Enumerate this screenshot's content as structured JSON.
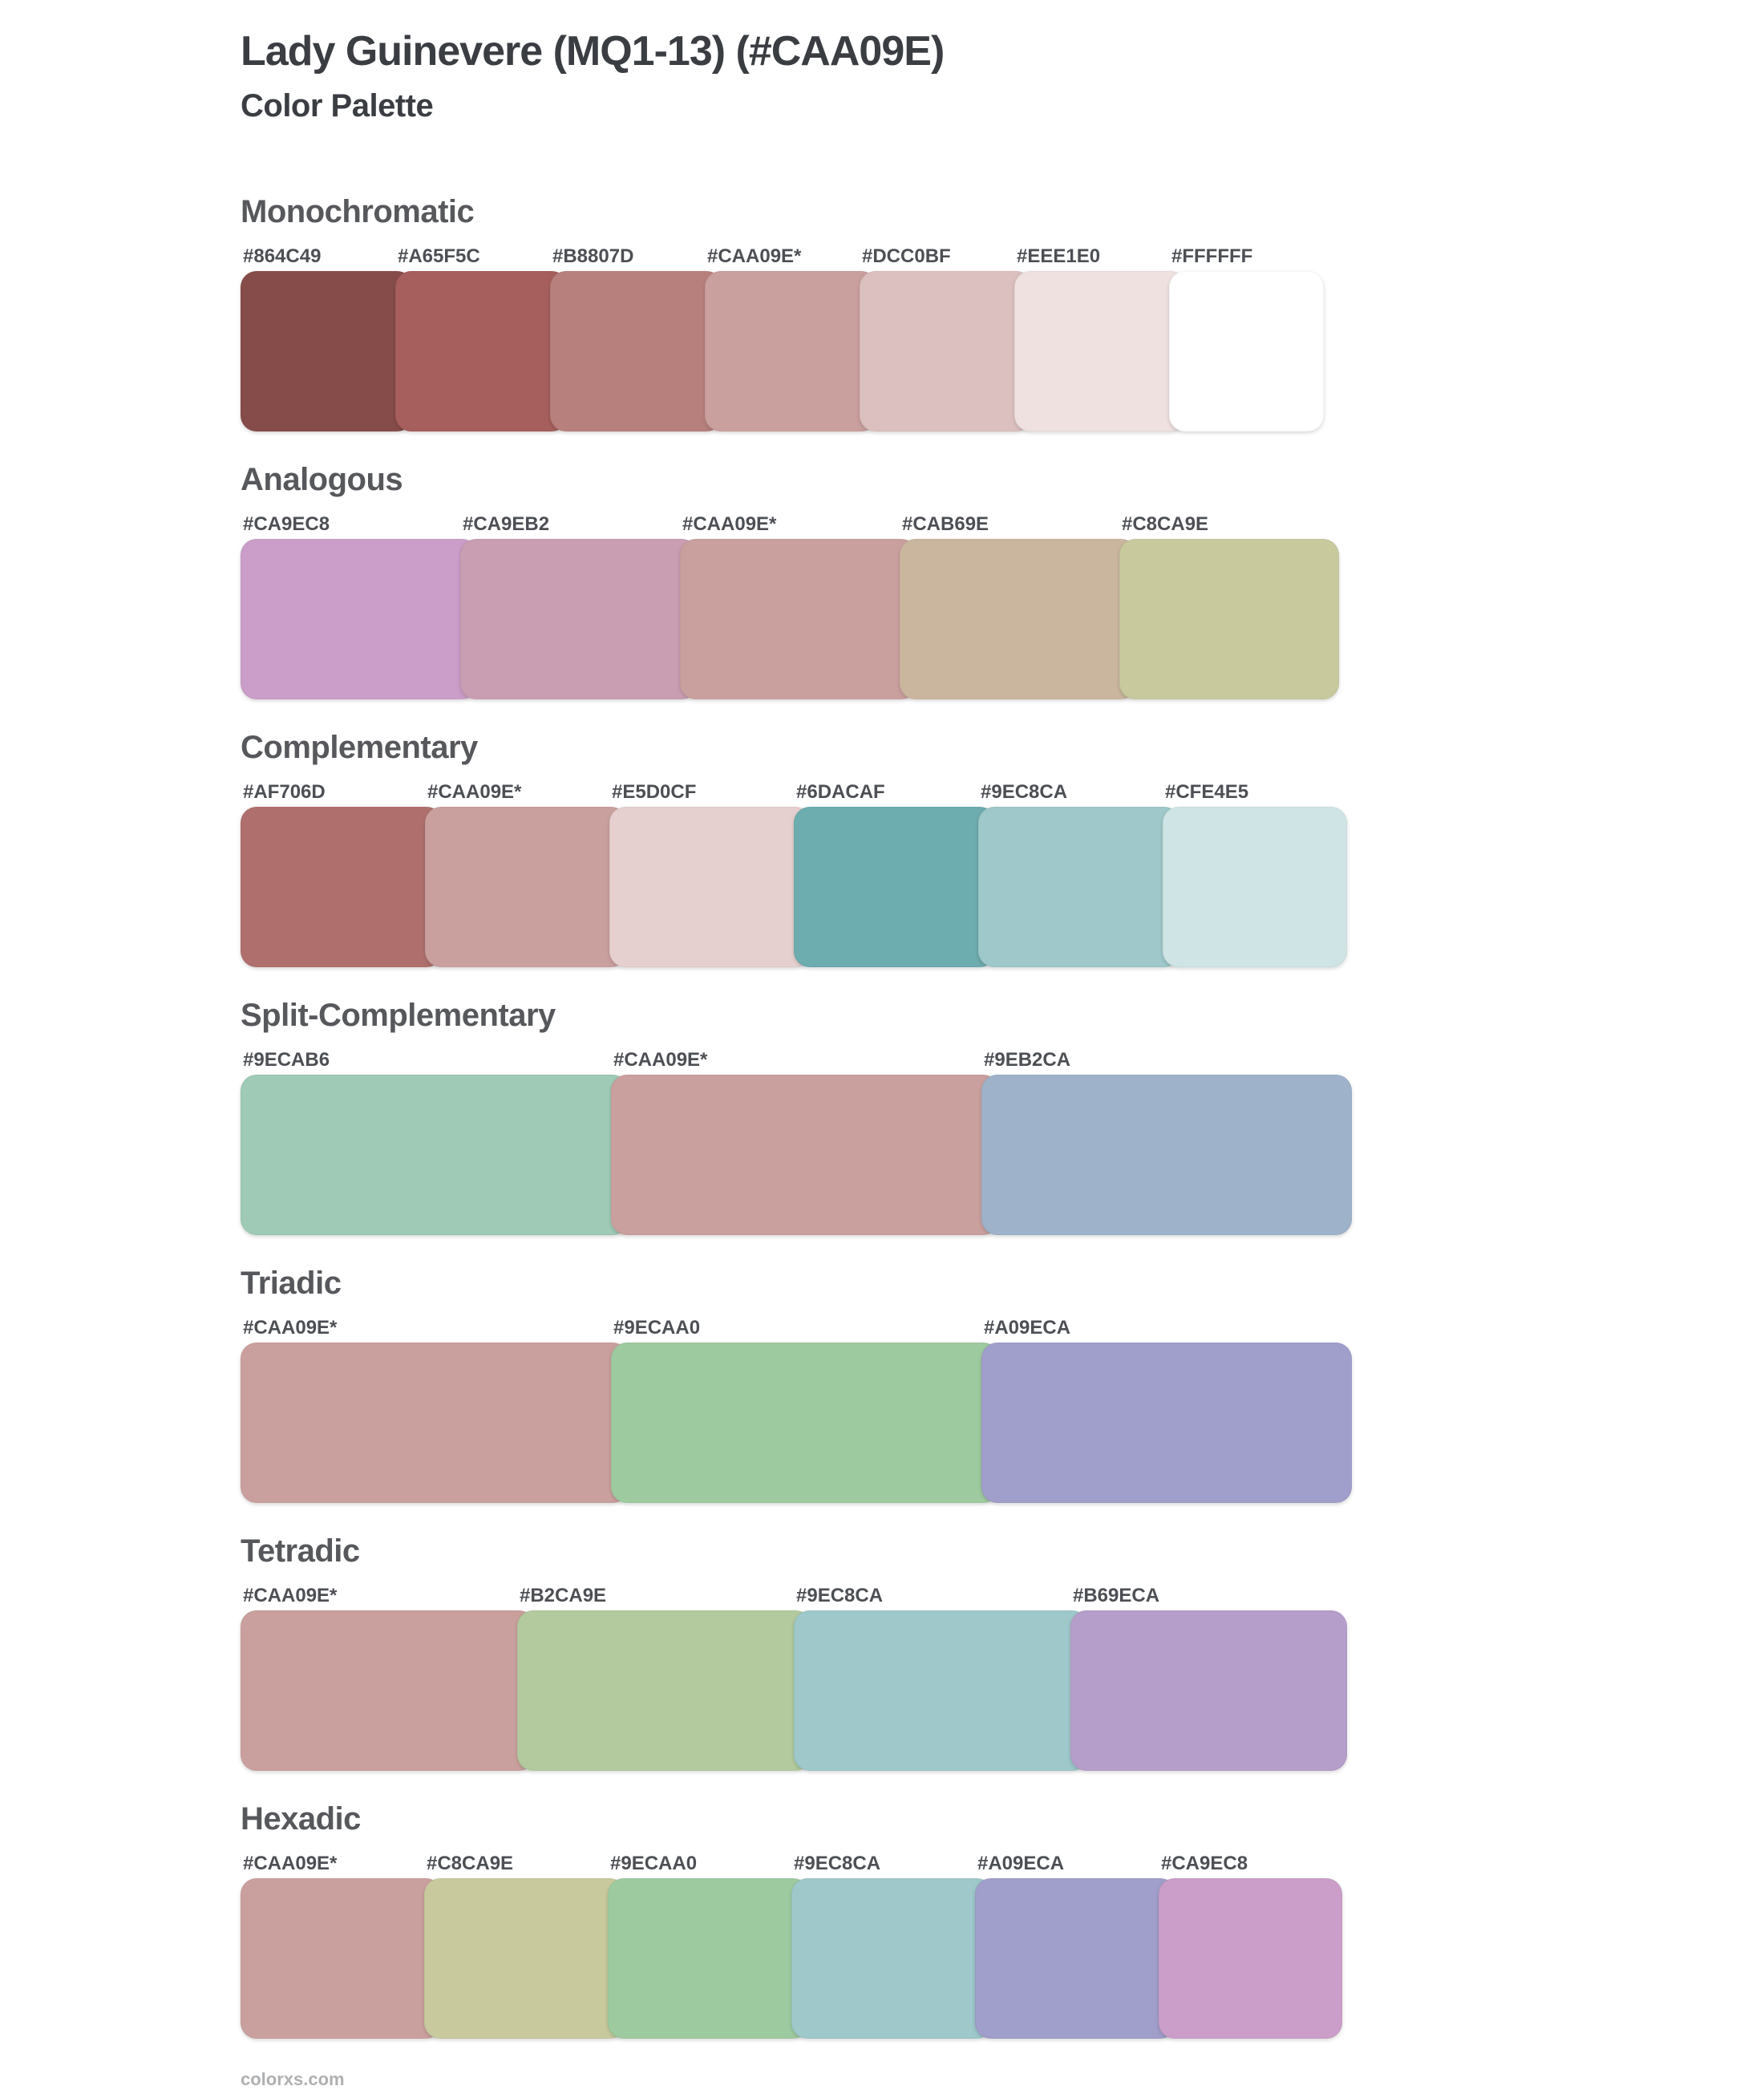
{
  "page": {
    "title": "Lady Guinevere (MQ1-13) (#CAA09E)",
    "subtitle": "Color Palette",
    "base_color": "#CAA09E",
    "footer": "colorxs.com"
  },
  "sections": [
    {
      "id": "monochromatic",
      "label": "Monochromatic",
      "swatches": [
        {
          "hex": "#864C49",
          "color": "#864C49"
        },
        {
          "hex": "#A65F5C",
          "color": "#A65F5C"
        },
        {
          "hex": "#B8807D",
          "color": "#B8807D"
        },
        {
          "hex": "#CAA09E*",
          "color": "#CAA09E"
        },
        {
          "hex": "#DCC0BF",
          "color": "#DCC0BF"
        },
        {
          "hex": "#EEE1E0",
          "color": "#EEE1E0"
        },
        {
          "hex": "#FFFFFF",
          "color": "#FFFFFF"
        }
      ]
    },
    {
      "id": "analogous",
      "label": "Analogous",
      "swatches": [
        {
          "hex": "#CA9EC8",
          "color": "#CA9EC8"
        },
        {
          "hex": "#CA9EB2",
          "color": "#CA9EB2"
        },
        {
          "hex": "#CAA09E*",
          "color": "#CAA09E"
        },
        {
          "hex": "#CAB69E",
          "color": "#CAB69E"
        },
        {
          "hex": "#C8CA9E",
          "color": "#C8CA9E"
        }
      ]
    },
    {
      "id": "complementary",
      "label": "Complementary",
      "swatches": [
        {
          "hex": "#AF706D",
          "color": "#AF706D"
        },
        {
          "hex": "#CAA09E*",
          "color": "#CAA09E"
        },
        {
          "hex": "#E5D0CF",
          "color": "#E5D0CF"
        },
        {
          "hex": "#6DACAF",
          "color": "#6DACAF"
        },
        {
          "hex": "#9EC8CA",
          "color": "#9EC8CA"
        },
        {
          "hex": "#CFE4E5",
          "color": "#CFE4E5"
        }
      ]
    },
    {
      "id": "split-complementary",
      "label": "Split-Complementary",
      "swatches": [
        {
          "hex": "#9ECAB6",
          "color": "#9ECAB6"
        },
        {
          "hex": "#CAA09E*",
          "color": "#CAA09E"
        },
        {
          "hex": "#9EB2CA",
          "color": "#9EB2CA"
        }
      ]
    },
    {
      "id": "triadic",
      "label": "Triadic",
      "swatches": [
        {
          "hex": "#CAA09E*",
          "color": "#CAA09E"
        },
        {
          "hex": "#9ECAA0",
          "color": "#9ECAA0"
        },
        {
          "hex": "#A09ECA",
          "color": "#A09ECA"
        }
      ]
    },
    {
      "id": "tetradic",
      "label": "Tetradic",
      "swatches": [
        {
          "hex": "#CAA09E*",
          "color": "#CAA09E"
        },
        {
          "hex": "#B2CA9E",
          "color": "#B2CA9E"
        },
        {
          "hex": "#9EC8CA",
          "color": "#9EC8CA"
        },
        {
          "hex": "#B69ECA",
          "color": "#B69ECA"
        }
      ]
    },
    {
      "id": "hexadic",
      "label": "Hexadic",
      "swatches": [
        {
          "hex": "#CAA09E*",
          "color": "#CAA09E"
        },
        {
          "hex": "#C8CA9E",
          "color": "#C8CA9E"
        },
        {
          "hex": "#9ECAA0",
          "color": "#9ECAA0"
        },
        {
          "hex": "#9EC8CA",
          "color": "#9EC8CA"
        },
        {
          "hex": "#A09ECA",
          "color": "#A09ECA"
        },
        {
          "hex": "#CA9EC8",
          "color": "#CA9EC8"
        }
      ]
    }
  ]
}
